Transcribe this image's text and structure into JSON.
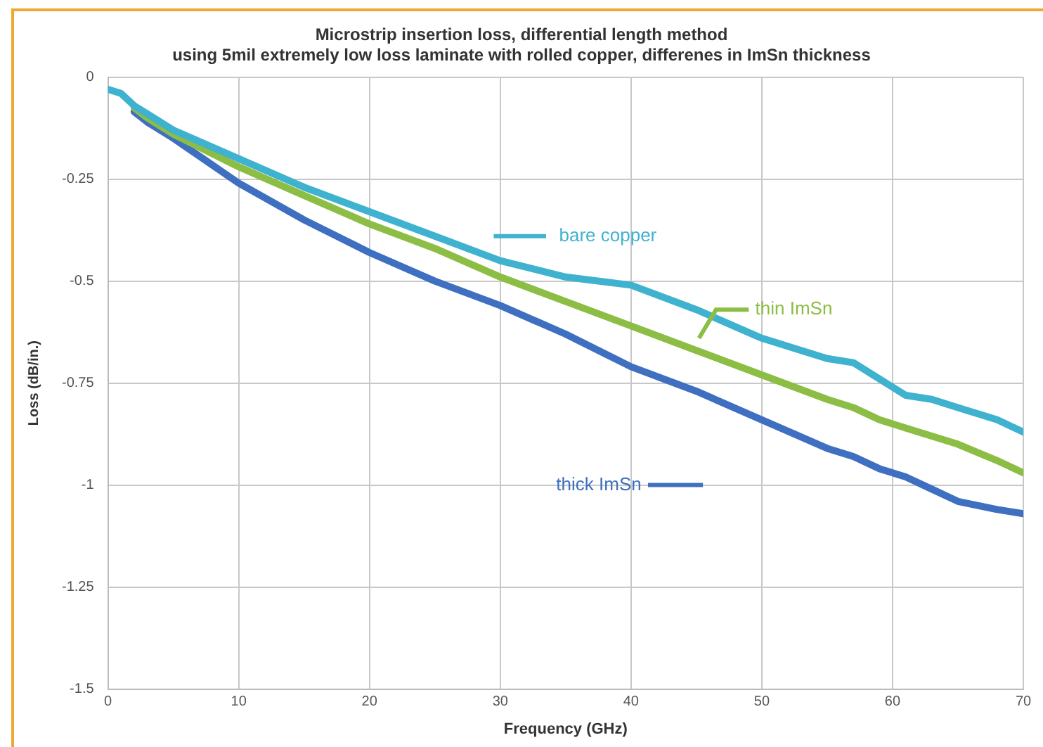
{
  "chart_data": {
    "type": "line",
    "title": "Microstrip insertion loss, differential length method\nusing 5mil extremely low loss laminate with rolled copper, differenes in ImSn thickness",
    "xlabel": "Frequency (GHz)",
    "ylabel": "Loss (dB/in.)",
    "x": [
      0,
      1,
      2,
      3,
      5,
      10,
      15,
      20,
      25,
      30,
      35,
      40,
      45,
      50,
      55,
      57,
      59,
      61,
      63,
      65,
      68,
      70
    ],
    "series": [
      {
        "name": "bare copper",
        "color": "#3fb2cf",
        "values": [
          -0.03,
          -0.04,
          -0.07,
          -0.09,
          -0.13,
          -0.2,
          -0.27,
          -0.33,
          -0.39,
          -0.45,
          -0.49,
          -0.51,
          -0.57,
          -0.64,
          -0.69,
          -0.7,
          -0.74,
          -0.78,
          -0.79,
          -0.81,
          -0.84,
          -0.87
        ]
      },
      {
        "name": "thin ImSn",
        "color": "#8cbd44",
        "values": [
          null,
          null,
          -0.075,
          -0.1,
          -0.14,
          -0.22,
          -0.29,
          -0.36,
          -0.42,
          -0.49,
          -0.55,
          -0.61,
          -0.67,
          -0.73,
          -0.79,
          -0.81,
          -0.84,
          -0.86,
          -0.88,
          -0.9,
          -0.94,
          -0.97
        ]
      },
      {
        "name": "thick ImSn",
        "color": "#3f6fc0",
        "values": [
          null,
          null,
          -0.085,
          -0.11,
          -0.15,
          -0.26,
          -0.35,
          -0.43,
          -0.5,
          -0.56,
          -0.63,
          -0.71,
          -0.77,
          -0.84,
          -0.91,
          -0.93,
          -0.96,
          -0.98,
          -1.01,
          -1.04,
          -1.06,
          -1.07
        ]
      }
    ],
    "xlim": [
      0,
      70
    ],
    "xticks": [
      0,
      10,
      20,
      30,
      40,
      50,
      60,
      70
    ],
    "ylim": [
      -1.5,
      0
    ],
    "yticks": [
      -1.5,
      -1.25,
      -1,
      -0.75,
      -0.5,
      -0.25,
      0
    ],
    "grid": true,
    "legend": "right",
    "marker": "none",
    "line_style": "solid"
  }
}
